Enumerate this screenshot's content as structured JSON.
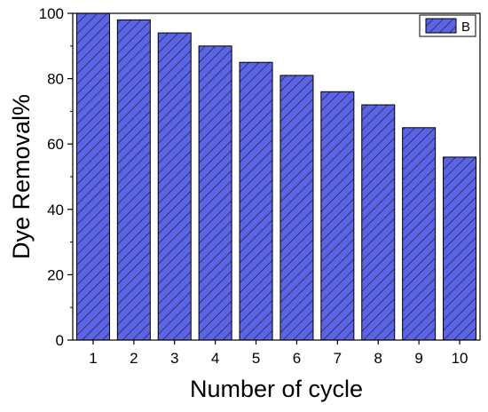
{
  "chart_data": {
    "type": "bar",
    "categories": [
      "1",
      "2",
      "3",
      "4",
      "5",
      "6",
      "7",
      "8",
      "9",
      "10"
    ],
    "series": [
      {
        "name": "B",
        "values": [
          100,
          98,
          94,
          90,
          85,
          81,
          76,
          72,
          65,
          56
        ]
      }
    ],
    "xlabel": "Number of cycle",
    "ylabel": "Dye Removal%",
    "ylim": [
      0,
      100
    ],
    "yticks": [
      0,
      20,
      40,
      60,
      80,
      100
    ],
    "grid": false,
    "legend_position": "top-right",
    "bar_fill": "#5b63e6",
    "hatch": "diagonal"
  }
}
